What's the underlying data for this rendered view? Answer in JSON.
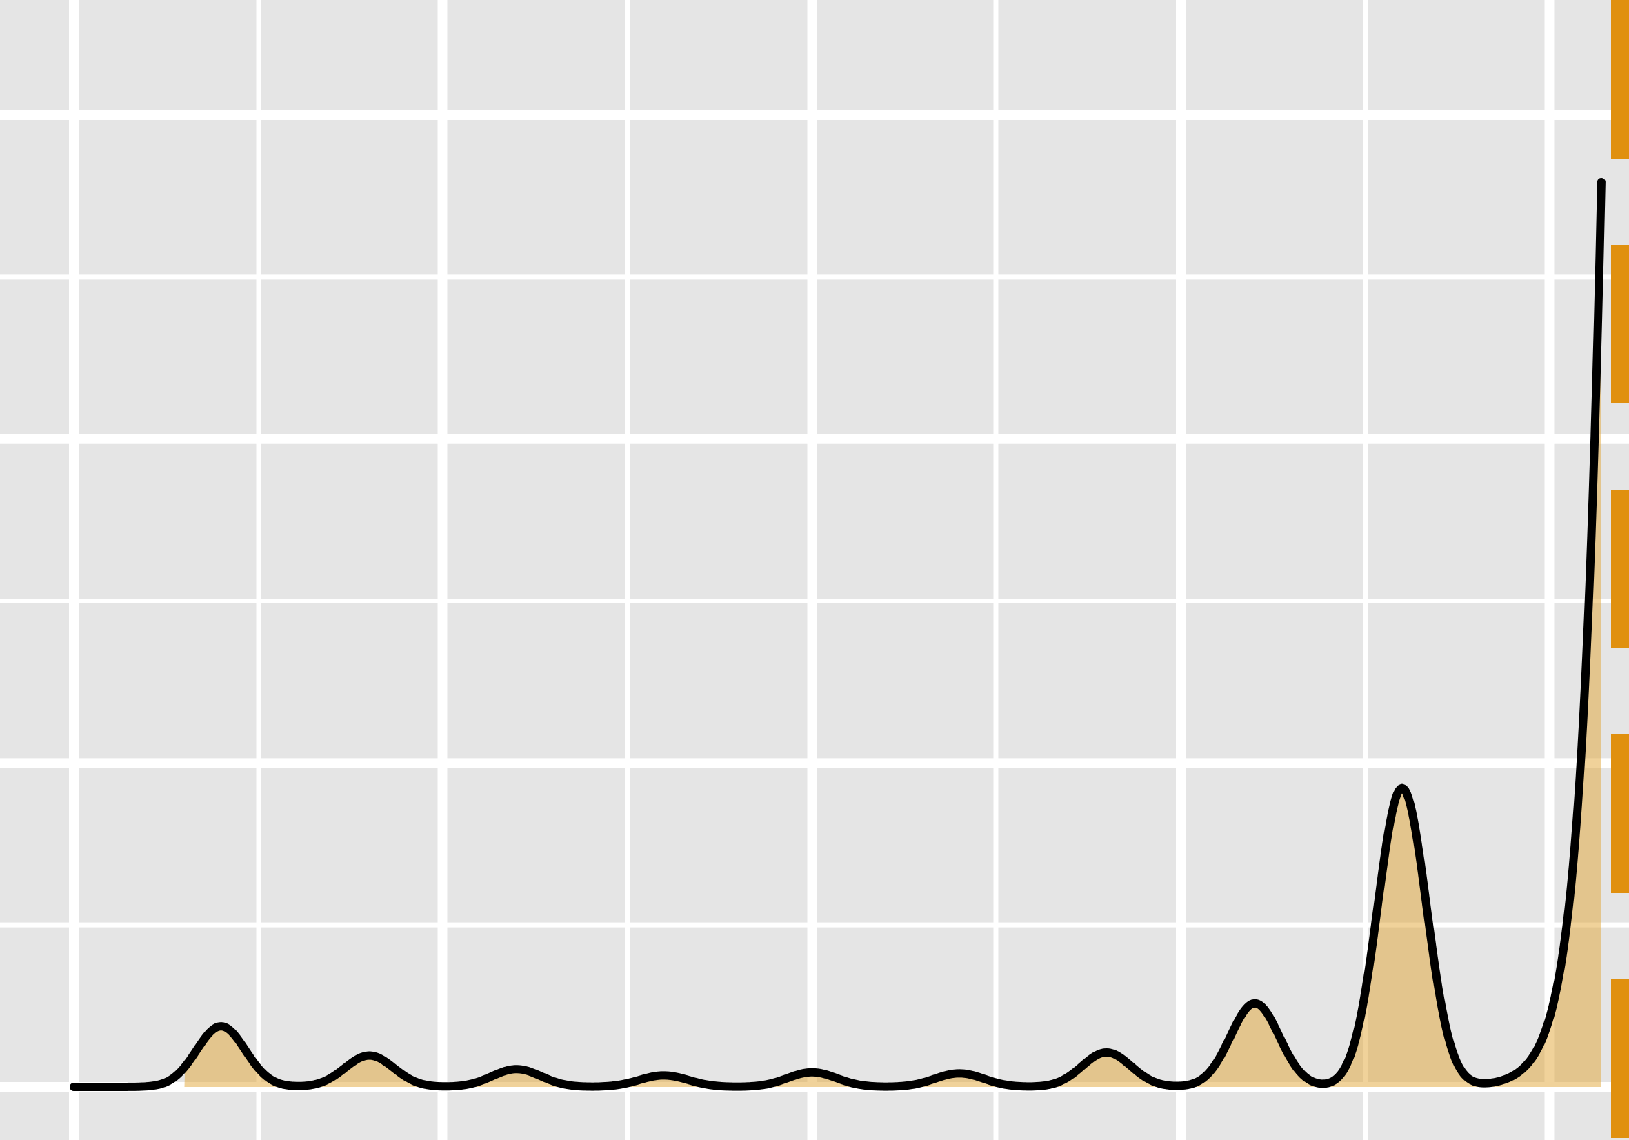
{
  "chart_data": {
    "type": "area",
    "title": "",
    "xlabel": "",
    "ylabel": "",
    "grid": true,
    "xlim": [
      0,
      1.42
    ],
    "ylim": [
      -0.02,
      1.0
    ],
    "background_color": "#e5e5e5",
    "grid_color": "#ffffff",
    "line_color": "#000000",
    "fill_color": "#e1a635",
    "fill_opacity": 0.5,
    "vline_color": "#e0900f",
    "x_gridlines_major": [
      0,
      0.333,
      0.667,
      1.0,
      1.333
    ],
    "x_gridlines_minor": [
      0.167,
      0.5,
      0.833,
      1.167
    ],
    "y_gridlines_major": [
      0,
      0.31,
      0.62,
      0.93
    ],
    "y_gridlines_minor": [
      0.155,
      0.465,
      0.775
    ],
    "fill_range": [
      0.1,
      1.38
    ],
    "reference_line_x": 1.4,
    "series": [
      {
        "baseline": 0.0,
        "end_x": 1.38,
        "end_y": 0.866,
        "peaks": [
          {
            "x": 0.133,
            "height": 0.058,
            "width": 0.022
          },
          {
            "x": 0.267,
            "height": 0.03,
            "width": 0.022
          },
          {
            "x": 0.4,
            "height": 0.017,
            "width": 0.022
          },
          {
            "x": 0.533,
            "height": 0.011,
            "width": 0.022
          },
          {
            "x": 0.667,
            "height": 0.014,
            "width": 0.022
          },
          {
            "x": 0.8,
            "height": 0.013,
            "width": 0.022
          },
          {
            "x": 0.933,
            "height": 0.033,
            "width": 0.022
          },
          {
            "x": 1.067,
            "height": 0.08,
            "width": 0.022
          },
          {
            "x": 1.2,
            "height": 0.286,
            "width": 0.022
          }
        ]
      }
    ]
  }
}
